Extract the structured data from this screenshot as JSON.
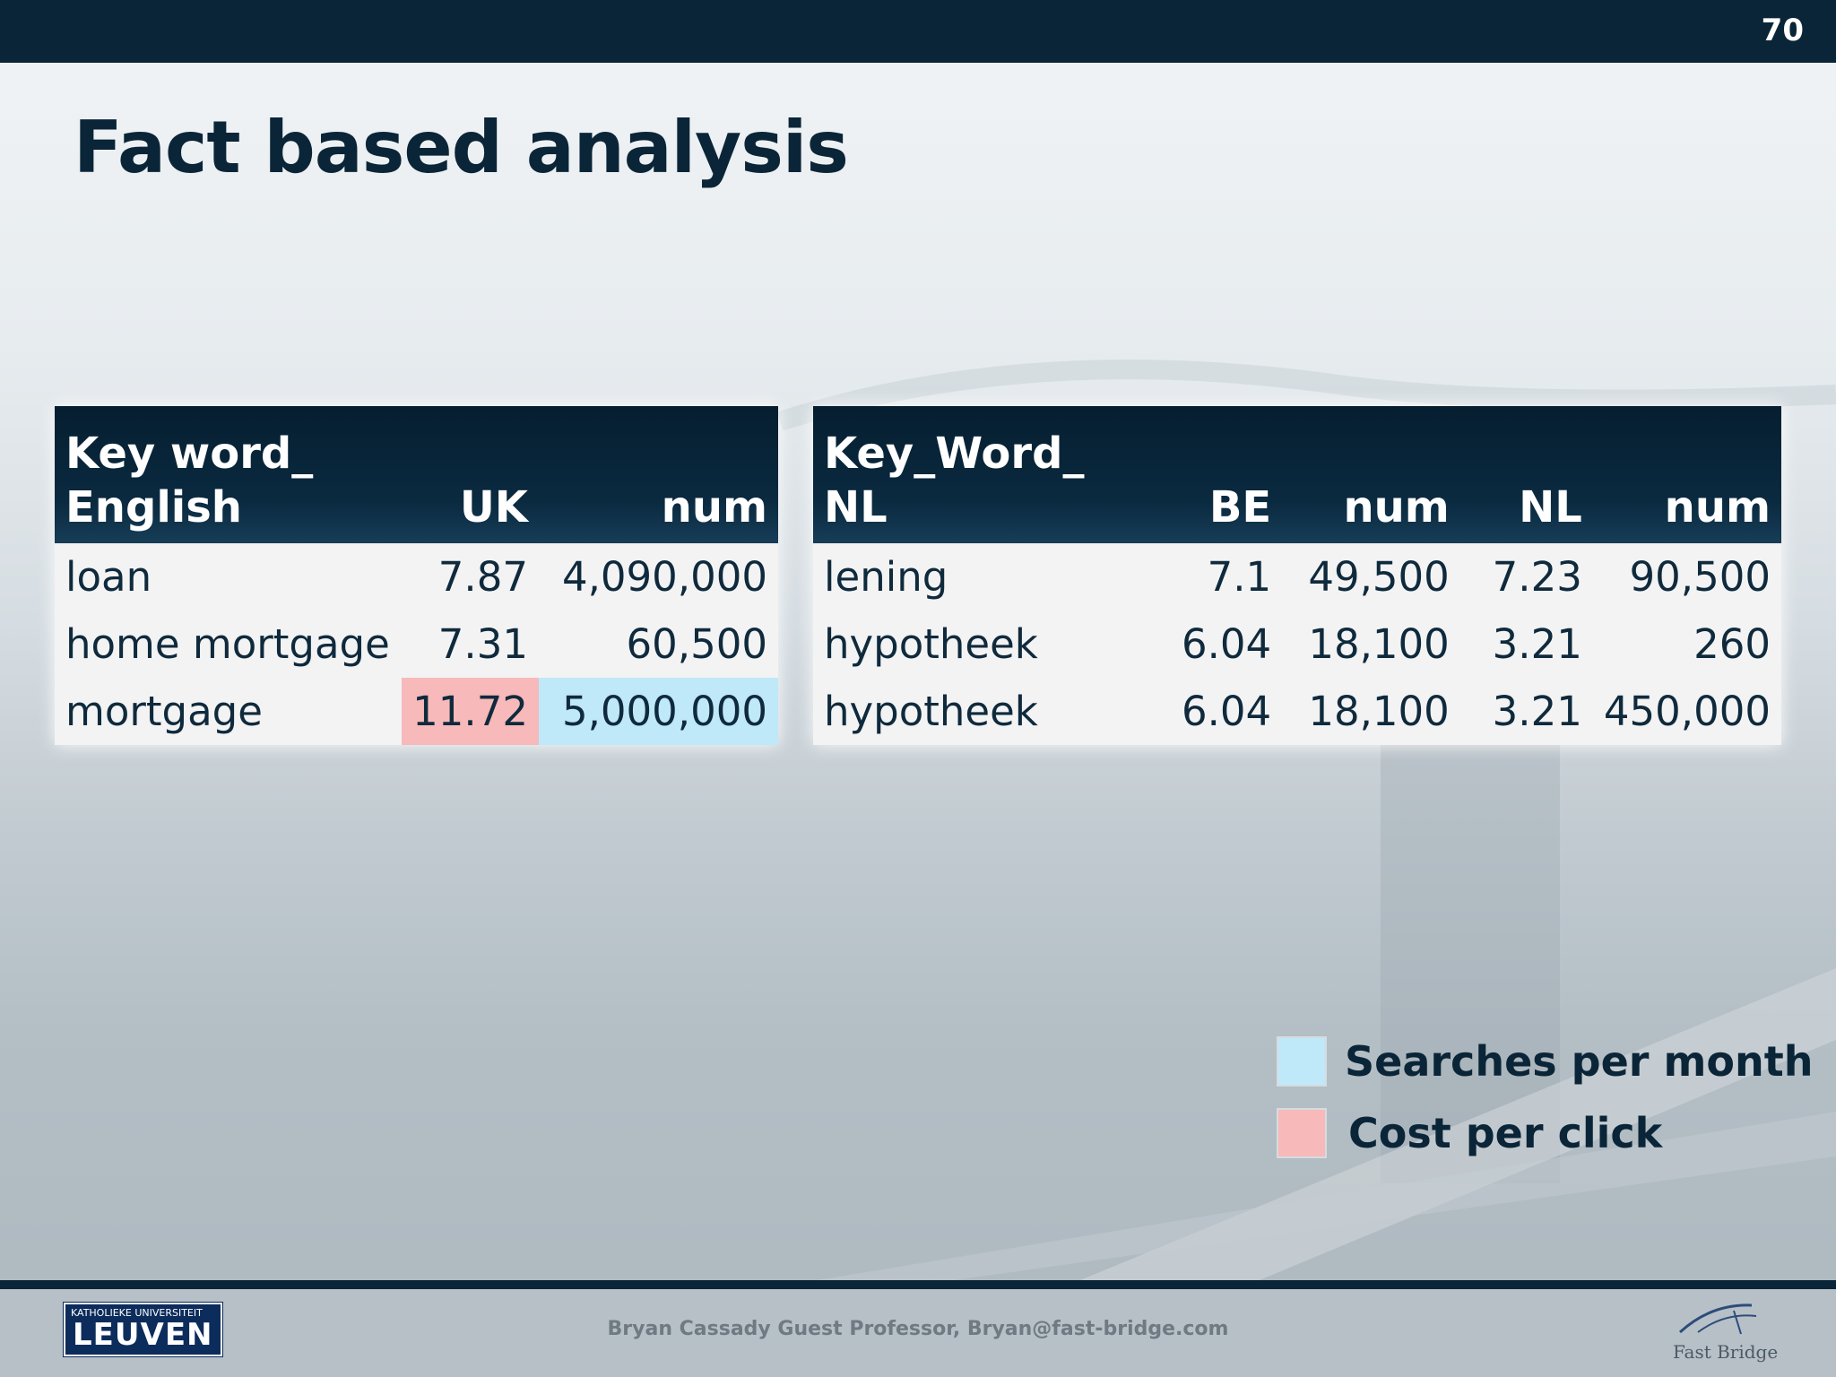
{
  "slide": {
    "page_number": "70",
    "title": "Fact based analysis"
  },
  "table_english": {
    "headers": [
      "Key word_\nEnglish",
      "UK",
      "num"
    ],
    "rows": [
      [
        "loan",
        "7.87",
        "4,090,000"
      ],
      [
        "home mortgage",
        "7.31",
        "60,500"
      ],
      [
        "mortgage",
        "11.72",
        "5,000,000"
      ]
    ]
  },
  "table_dutch": {
    "headers": [
      "Key_Word_\nNL",
      "BE",
      "num",
      "NL",
      "num"
    ],
    "rows": [
      [
        "lening",
        "7.1",
        "49,500",
        "7.23",
        "90,500"
      ],
      [
        "hypotheek",
        "6.04",
        "18,100",
        "3.21",
        "260"
      ],
      [
        "hypotheek",
        "6.04",
        "18,100",
        "3.21",
        "450,000"
      ]
    ]
  },
  "legend": {
    "searches_label": "Searches per month",
    "searches_color": "#bfe8f9",
    "cost_label": "Cost per click",
    "cost_color": "#f7b9ba"
  },
  "footer": {
    "text": "Bryan Cassady Guest Professor, Bryan@fast-bridge.com",
    "logo_small_text": "KATHOLIEKE UNIVERSITEIT",
    "logo_big_text": "LEUVEN",
    "fast_bridge_text": "Fast Bridge"
  }
}
